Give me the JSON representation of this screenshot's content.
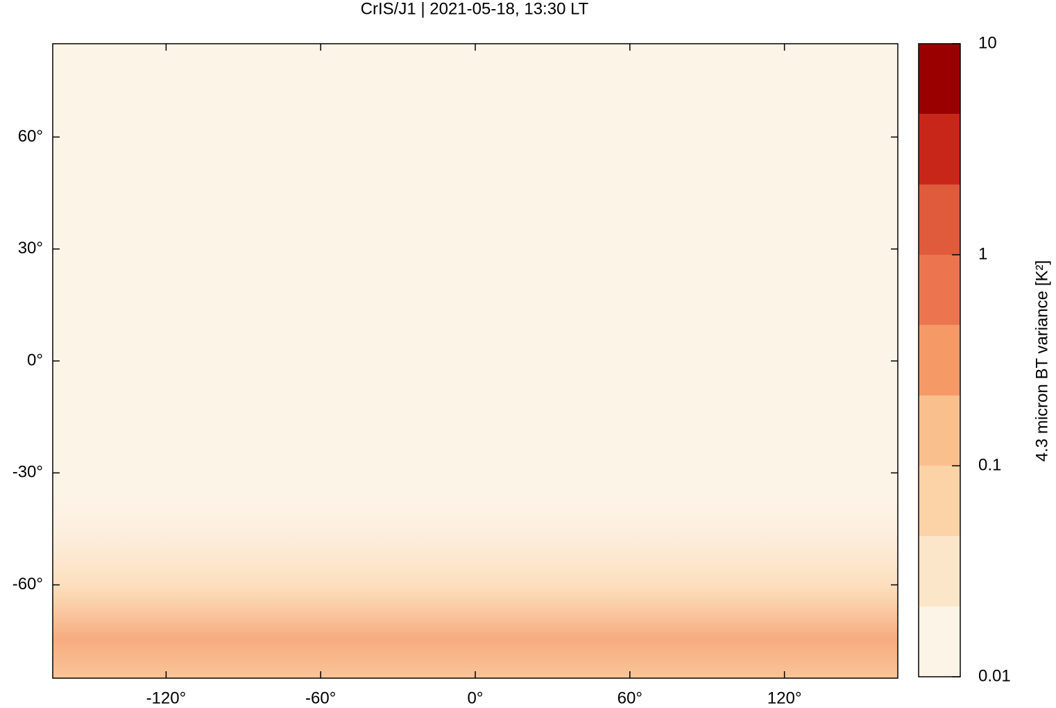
{
  "chart_data": {
    "type": "heatmap",
    "title": "CrIS/J1 | 2021-05-18, 13:30 LT",
    "xlim": [
      -164,
      164
    ],
    "ylim": [
      -85,
      85
    ],
    "xticks": [
      {
        "value": -120,
        "label": "-120°"
      },
      {
        "value": -60,
        "label": "-60°"
      },
      {
        "value": 0,
        "label": "0°"
      },
      {
        "value": 60,
        "label": "60°"
      },
      {
        "value": 120,
        "label": "120°"
      }
    ],
    "yticks": [
      {
        "value": -60,
        "label": "-60°"
      },
      {
        "value": -30,
        "label": "-30°"
      },
      {
        "value": 0,
        "label": "0°"
      },
      {
        "value": 30,
        "label": "30°"
      },
      {
        "value": 60,
        "label": "60°"
      }
    ],
    "colorbar": {
      "label": "4.3 micron BT variance [K²]",
      "scale": "log",
      "lim": [
        0.01,
        10
      ],
      "ticks": [
        0.01,
        0.1,
        1,
        10
      ],
      "levels": [
        0.01,
        0.0215,
        0.0464,
        0.1,
        0.215,
        0.464,
        1,
        2.15,
        4.64,
        10
      ],
      "colors": [
        "#fdf4e8",
        "#fce6c9",
        "#fbd3a6",
        "#f9c08e",
        "#f59a66",
        "#ec7550",
        "#e05a3c",
        "#c9261a",
        "#9b0000"
      ]
    }
  }
}
